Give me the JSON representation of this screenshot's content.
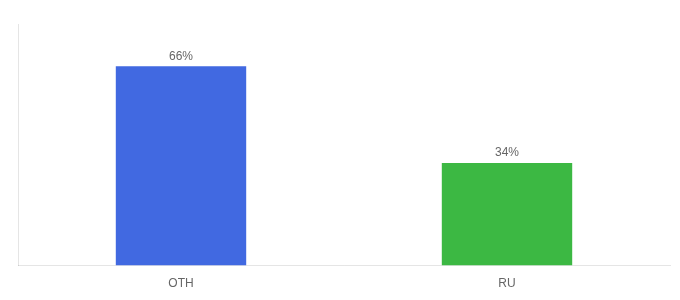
{
  "chart_data": {
    "type": "bar",
    "categories": [
      "OTH",
      "RU"
    ],
    "values": [
      66,
      34
    ],
    "value_labels": [
      "66%",
      "34%"
    ],
    "colors": [
      "#4169E1",
      "#3CB843"
    ],
    "ylim": [
      0,
      80
    ],
    "grid": false,
    "data_labels": true,
    "tick_labels": "x"
  }
}
